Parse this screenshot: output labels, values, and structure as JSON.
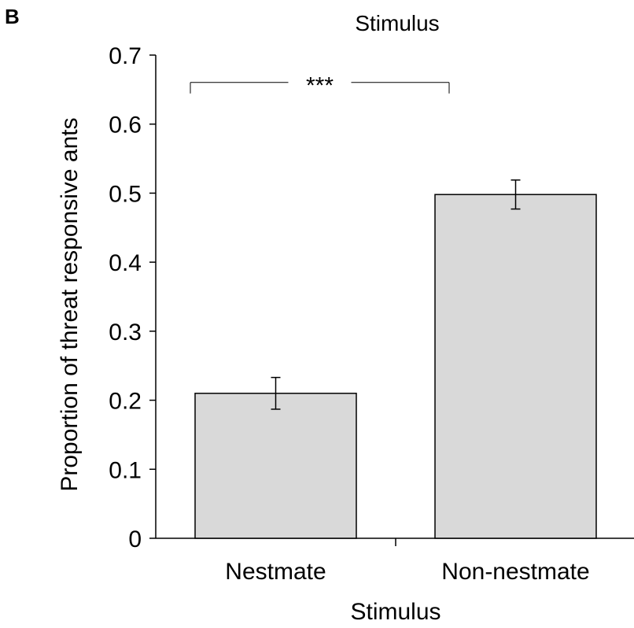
{
  "panel_label": "B",
  "chart_data": {
    "type": "bar",
    "title": "Stimulus",
    "xlabel": "Stimulus",
    "ylabel": "Proportion of threat responsive ants",
    "categories": [
      "Nestmate",
      "Non-nestmate"
    ],
    "values": [
      0.21,
      0.498
    ],
    "error": [
      0.023,
      0.021
    ],
    "ylim": [
      0,
      0.7
    ],
    "yticks": [
      "0",
      "0.1",
      "0.2",
      "0.3",
      "0.4",
      "0.5",
      "0.6",
      "0.7"
    ],
    "bar_color": "#d9d9d9",
    "grid": false,
    "significance": {
      "label": "***",
      "between": [
        "Nestmate",
        "Non-nestmate"
      ],
      "level": 0.665
    }
  }
}
